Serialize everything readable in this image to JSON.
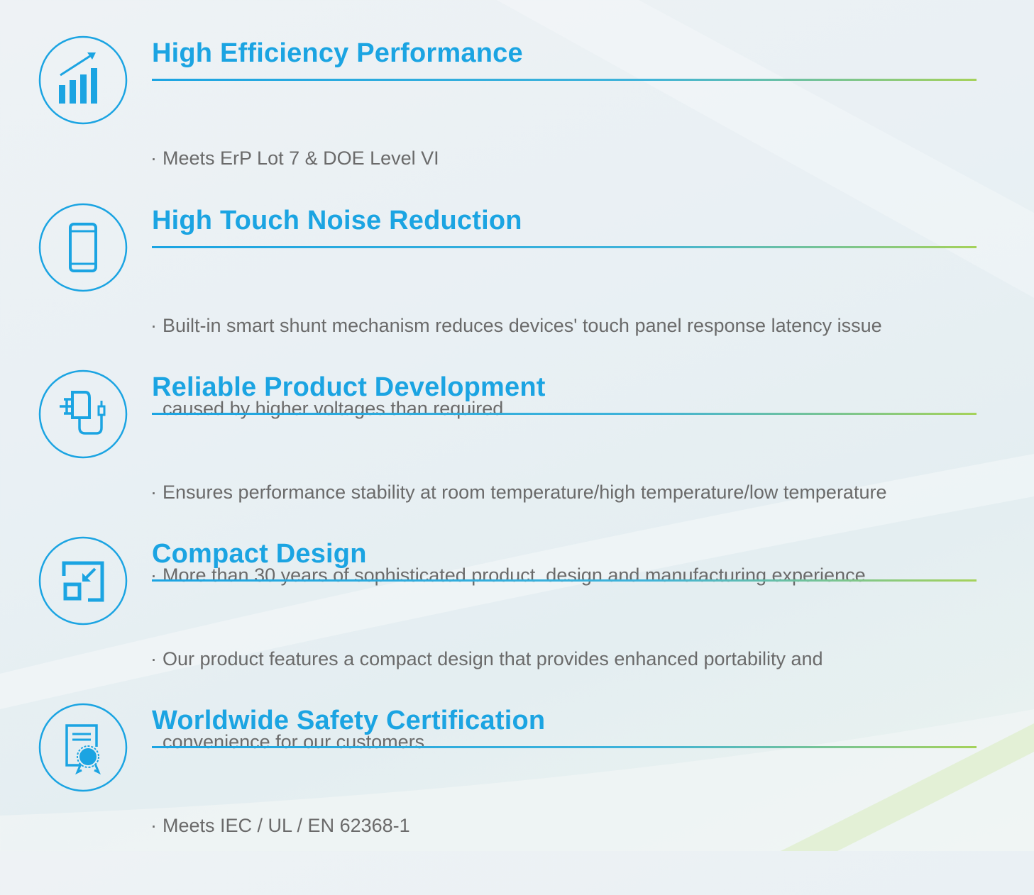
{
  "colors": {
    "accent": "#1ba4e2",
    "text": "#6a6a6a",
    "rule_end": "#a5d25a"
  },
  "features": [
    {
      "icon": "bar-chart-growth-icon",
      "title": "High Efficiency Performance",
      "bullet": "·",
      "lines": [
        "Meets ErP Lot 7 & DOE Level VI"
      ]
    },
    {
      "icon": "smartphone-icon",
      "title": "High Touch Noise Reduction",
      "bullet": "·",
      "lines": [
        "Built-in smart shunt mechanism reduces devices' touch panel response latency issue",
        "caused by higher voltages than required"
      ]
    },
    {
      "icon": "power-adapter-icon",
      "title": "Reliable Product Development",
      "bullet": "·",
      "lines": [
        "Ensures performance stability at room temperature/high temperature/low temperature",
        "More than 30 years of sophisticated product  design and manufacturing experience"
      ]
    },
    {
      "icon": "compact-resize-icon",
      "title": "Compact Design",
      "bullet": "·",
      "lines": [
        "Our product features a compact design that provides enhanced portability and",
        "convenience for our customers"
      ]
    },
    {
      "icon": "certificate-icon",
      "title": "Worldwide Safety Certification",
      "bullet": "·",
      "lines": [
        "Meets IEC / UL / EN 62368-1"
      ]
    }
  ]
}
